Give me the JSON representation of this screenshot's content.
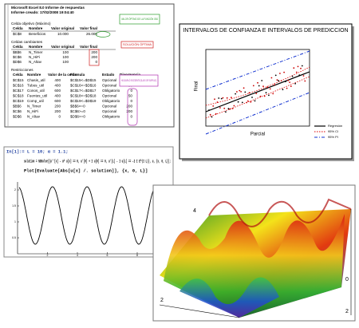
{
  "excel": {
    "title": "Microsoft Excel 8.0 Informe de respuestas",
    "created": "Informe creado: 17/02/2008 19:04:40",
    "objective": {
      "heading": "Celda objetivo (Máximo)",
      "columns": [
        "Celda",
        "Nombre",
        "Valor original",
        "Valor final"
      ],
      "rows": [
        [
          "$C$8",
          "Beneficios",
          "10.000",
          "26.000"
        ]
      ]
    },
    "changing": {
      "heading": "Celdas cambiantes",
      "columns": [
        "Celda",
        "Nombre",
        "Valor original",
        "Valor final"
      ],
      "rows": [
        [
          "$B$6",
          "N_Timer",
          "100",
          "200"
        ],
        [
          "$C$6",
          "N_HiFi",
          "100",
          "200"
        ],
        [
          "$D$6",
          "N_Altav",
          "100",
          "0"
        ]
      ]
    },
    "constraints": {
      "heading": "Restricciones",
      "columns": [
        "Celda",
        "Nombre",
        "Valor de la celda",
        "Fórmula",
        "Estado",
        "Divergencia"
      ],
      "rows": [
        [
          "$C$15",
          "Chasis_util",
          "400",
          "$C$15<=$D$15",
          "Opcional",
          "50"
        ],
        [
          "$C$16",
          "Tubos_util",
          "400",
          "$C$16<=$D$16",
          "Opcional",
          "50"
        ],
        [
          "$C$17",
          "Conos_util",
          "600",
          "$C$17<=$D$17",
          "Obligatorio",
          "0"
        ],
        [
          "$C$18",
          "Fuentes_util",
          "400",
          "$C$18<=$D$18",
          "Opcional",
          "50"
        ],
        [
          "$C$19",
          "Comp_util",
          "600",
          "$C$19<=$D$19",
          "Obligatorio",
          "0"
        ],
        [
          "$B$6",
          "N_Timer",
          "200",
          "$B$6>=0",
          "Opcional",
          "200"
        ],
        [
          "$C$6",
          "N_HiFi",
          "200",
          "$C$6>=0",
          "Opcional",
          "200"
        ],
        [
          "$D$6",
          "N_Altav",
          "0",
          "$D$6>=0",
          "Obligatorio",
          "0"
        ]
      ]
    },
    "callouts": [
      "VALOR ÓPTIMO DE LA FUNCIÓN OBJ",
      "SOLUCIÓN ÓPTIMA",
      "HOLGURA Ó EXCEDENTE (SLACK OR SURPLUS)"
    ]
  },
  "stats": {
    "title": "INTERVALOS DE CONFIANZA E INTERVALOS DE PREDICCION",
    "y_label": "Final",
    "x_label": "Parcial",
    "legend": [
      "Regresión",
      "95% CI",
      "95% PI"
    ]
  },
  "mathematica": {
    "lines": [
      "In[1]:= L = 10; α = 1.1;",
      "solution = NDSolve[{u''[x] - α² u[x] == 0, u'[0] + I u[0] == 0, u'[L] - I u[L] == -2 I E^(I L)}, u, {x, 0, L}];",
      "Plot[Evaluate[Abs[u[x] /. solution]], {x, 0, L}]"
    ],
    "xticks": [
      "2",
      "4",
      "6",
      "8",
      "10"
    ],
    "yticks": [
      "0.5",
      "1",
      "1.5",
      "2"
    ]
  },
  "surface": {
    "axis_labels": [
      "4",
      "2",
      "0",
      "2"
    ]
  }
}
